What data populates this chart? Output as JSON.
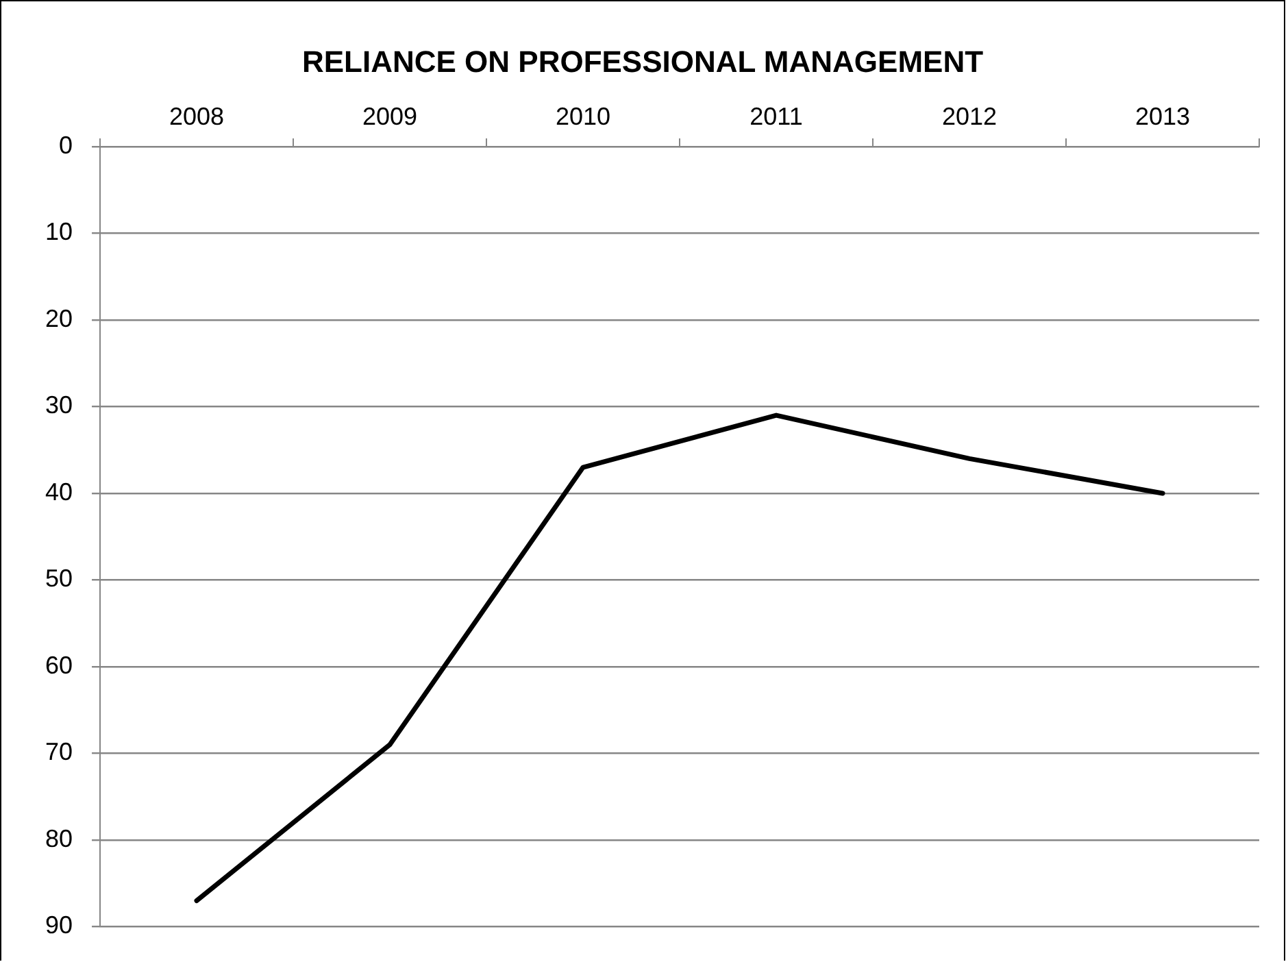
{
  "chart_data": {
    "type": "line",
    "title": "RELIANCE ON PROFESSIONAL MANAGEMENT",
    "categories": [
      "2008",
      "2009",
      "2010",
      "2011",
      "2012",
      "2013"
    ],
    "series": [
      {
        "color": "#000000",
        "values": [
          87,
          69,
          37,
          31,
          36,
          40
        ]
      }
    ],
    "ylim": [
      90,
      0
    ],
    "yticks": [
      0,
      10,
      20,
      30,
      40,
      50,
      60,
      70,
      80,
      90
    ],
    "grid": "y",
    "legend": false,
    "marker": "none",
    "line_style": "solid"
  }
}
